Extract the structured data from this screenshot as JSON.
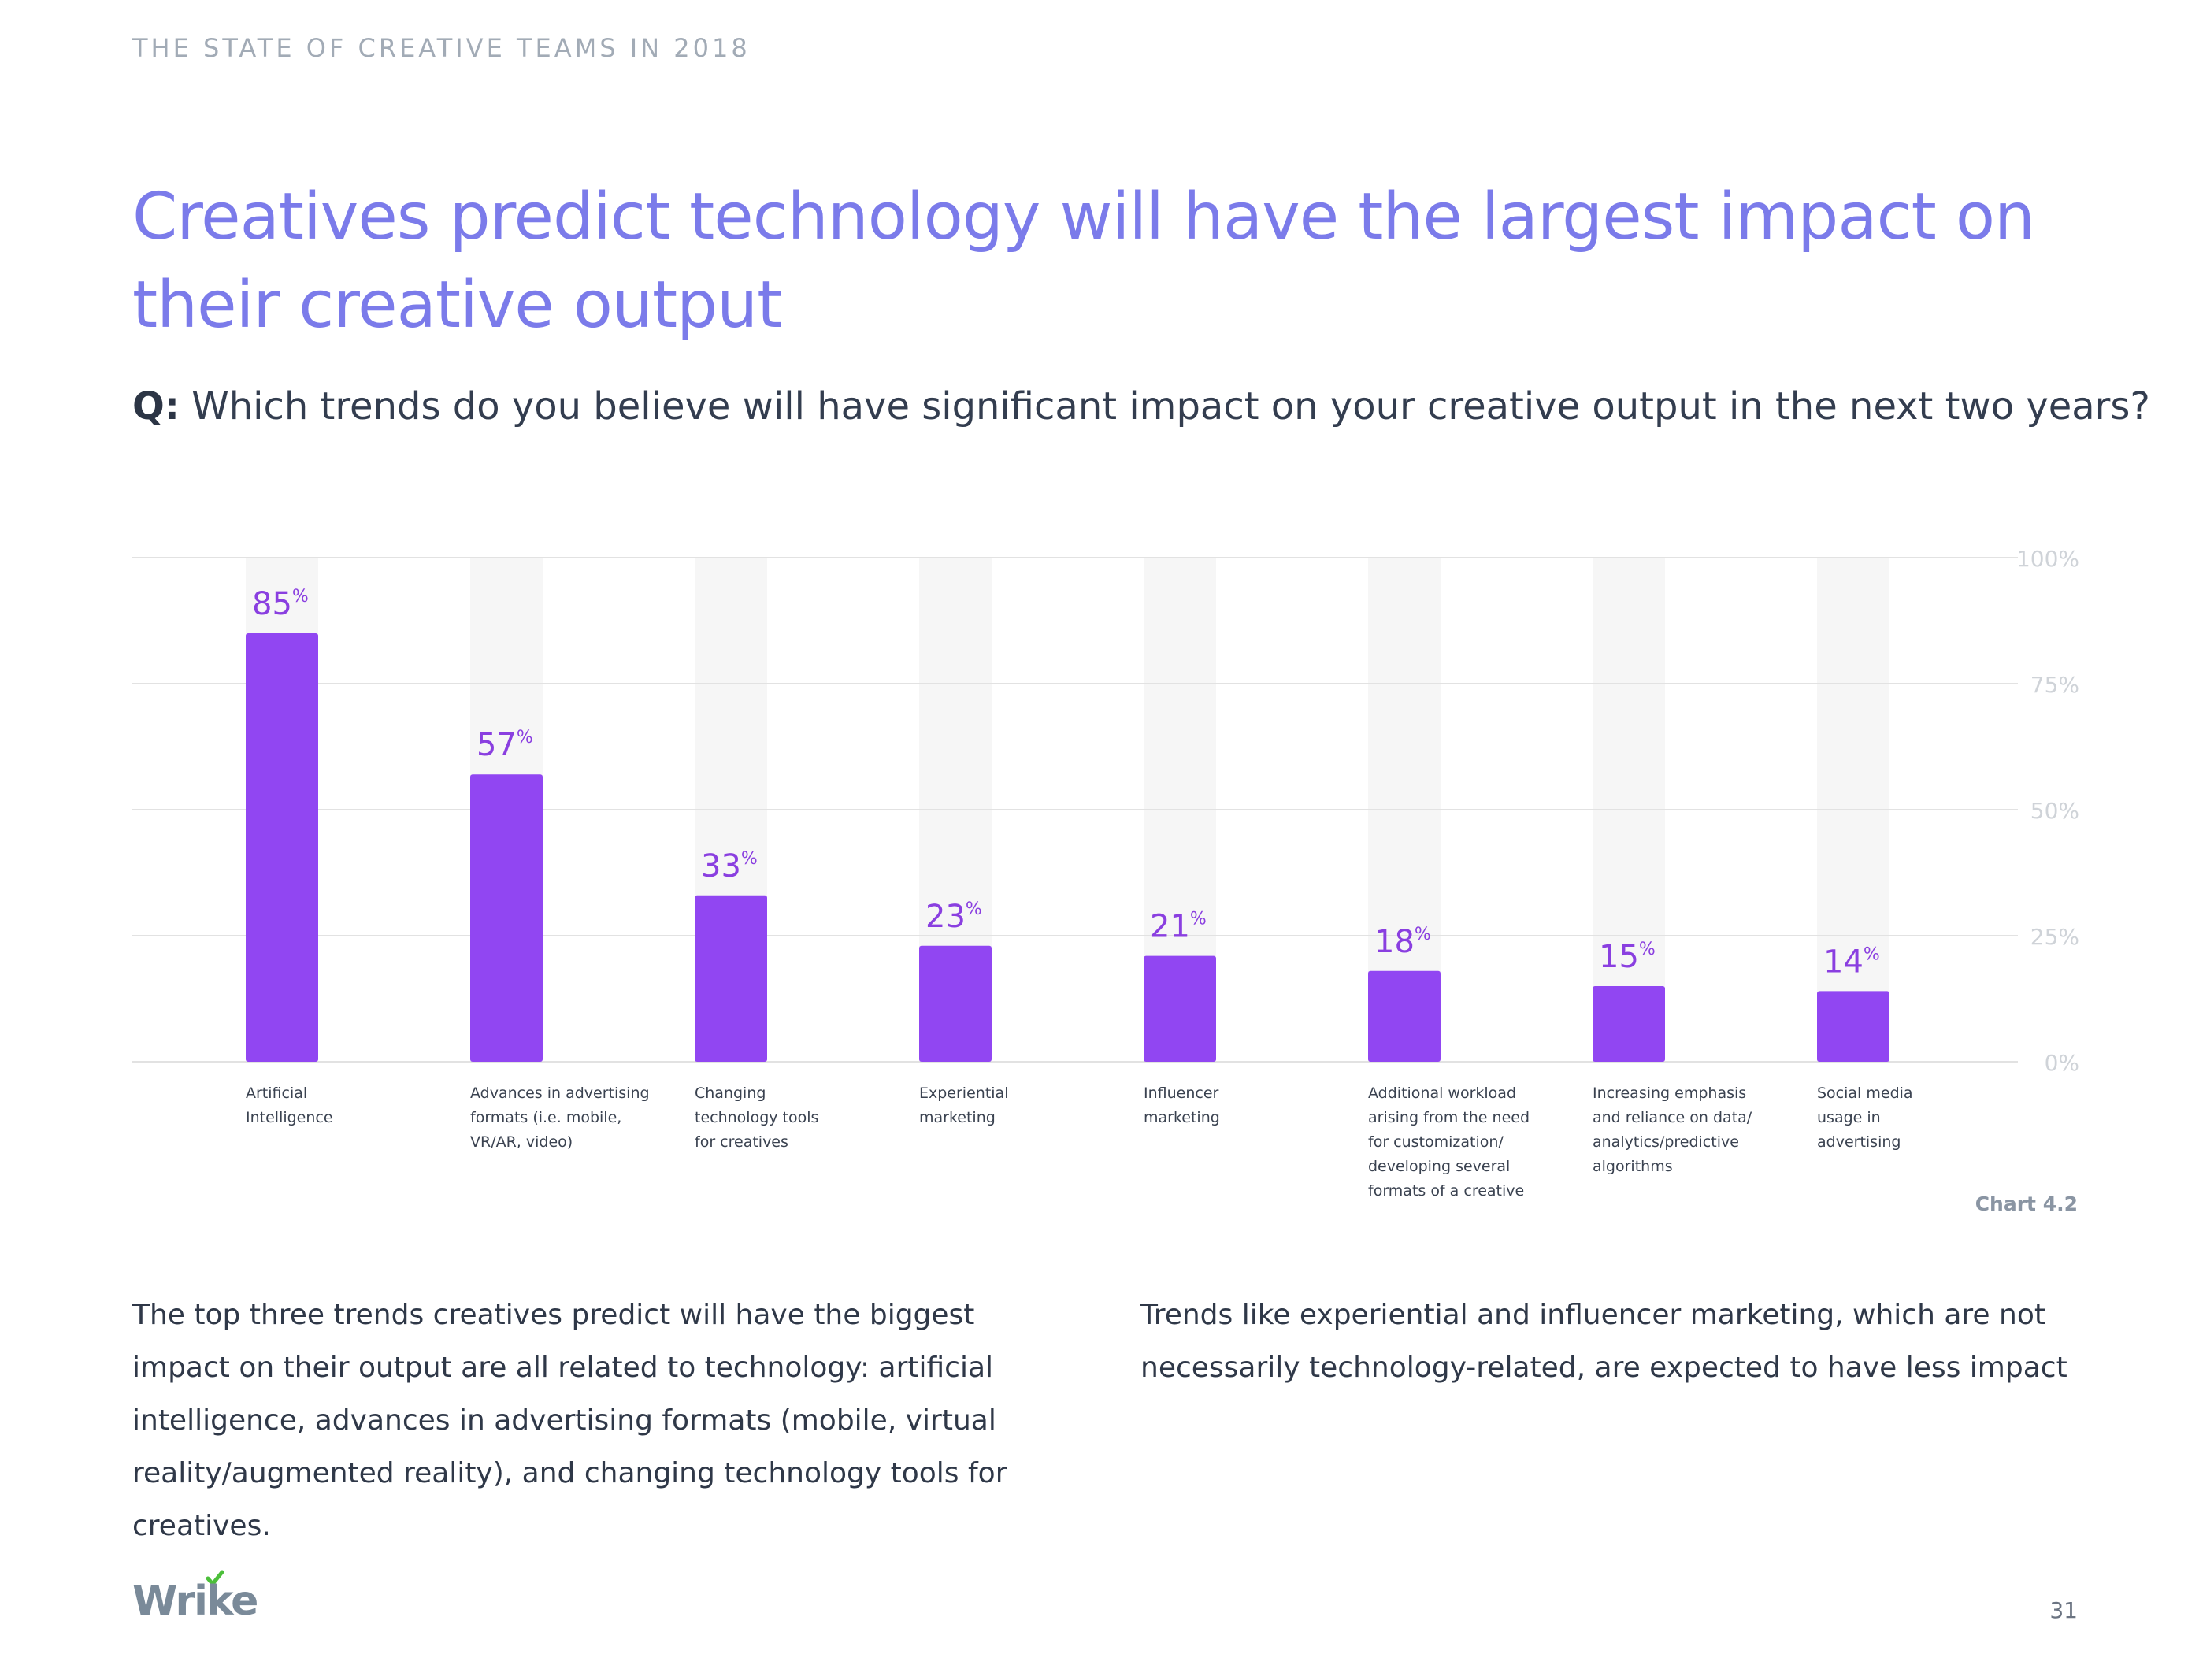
{
  "header": {
    "eyebrow": "THE STATE OF CREATIVE TEAMS IN 2018"
  },
  "headline": "Creatives predict technology will have the largest impact on their creative output",
  "question": {
    "prefix": "Q:",
    "text": " Which trends do you believe will have significant impact on your creative output in the next two years?"
  },
  "chart_data": {
    "type": "bar",
    "categories": [
      [
        "Artificial",
        "Intelligence"
      ],
      [
        "Advances in advertising",
        "formats (i.e. mobile,",
        "VR/AR, video)"
      ],
      [
        "Changing",
        "technology tools",
        "for creatives"
      ],
      [
        "Experiential",
        "marketing"
      ],
      [
        "Influencer",
        "marketing"
      ],
      [
        "Additional workload",
        "arising from the need",
        "for customization/",
        "developing several",
        "formats of a creative"
      ],
      [
        "Increasing emphasis",
        "and reliance on data/",
        "analytics/predictive",
        "algorithms"
      ],
      [
        "Social media",
        "usage in",
        "advertising"
      ]
    ],
    "values": [
      85,
      57,
      33,
      23,
      21,
      18,
      15,
      14
    ],
    "value_suffix": "%",
    "ylim": [
      0,
      100
    ],
    "yticks": [
      0,
      25,
      50,
      75,
      100
    ],
    "ytick_labels": [
      "0%",
      "25%",
      "50%",
      "75%",
      "100%"
    ],
    "grid": true,
    "bar_color": "#9146f2",
    "track_color": "#f6f6f6",
    "label_color": "#8a3fe0"
  },
  "chart_caption": "Chart 4.2",
  "body": {
    "left": "The top three trends creatives predict will have the biggest impact on their output are all related to technology: artificial intelligence, advances in advertising formats (mobile, virtual reality/augmented reality), and changing technology tools for creatives.",
    "right": "Trends like experiential and influencer marketing, which are not necessarily technology-related, are expected to have less impact"
  },
  "footer": {
    "logo_text": "Wrike",
    "logo_color": "#7a8a99",
    "logo_check_color": "#4cbf3a",
    "page_number": "31"
  }
}
